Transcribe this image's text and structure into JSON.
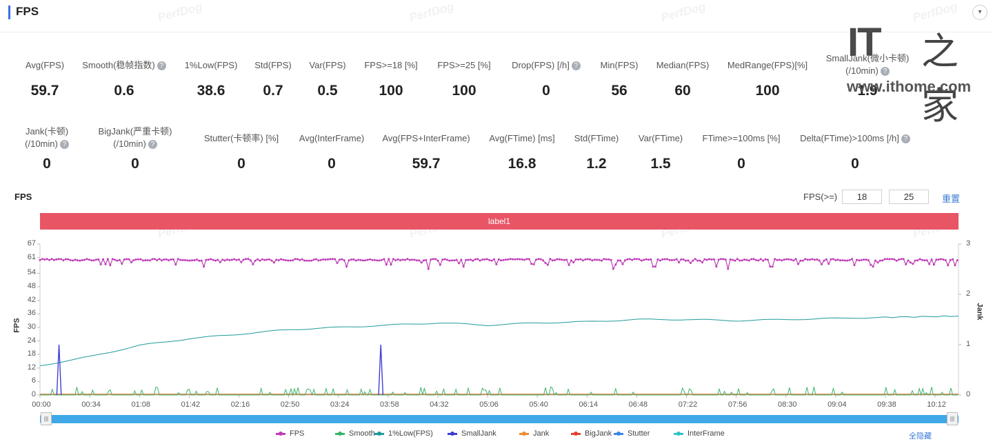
{
  "header": {
    "title": "FPS",
    "collapse_icon": "▾"
  },
  "watermark": "PerfDog",
  "metrics_row1": [
    {
      "label": "Avg(FPS)",
      "value": "59.7",
      "help": false
    },
    {
      "label": "Smooth(稳帧指数)",
      "value": "0.6",
      "help": true
    },
    {
      "label": "1%Low(FPS)",
      "value": "38.6",
      "help": false
    },
    {
      "label": "Std(FPS)",
      "value": "0.7",
      "help": false
    },
    {
      "label": "Var(FPS)",
      "value": "0.5",
      "help": false
    },
    {
      "label": "FPS>=18 [%]",
      "value": "100",
      "help": false
    },
    {
      "label": "FPS>=25 [%]",
      "value": "100",
      "help": false
    },
    {
      "label": "Drop(FPS) [/h]",
      "value": "0",
      "help": true
    },
    {
      "label": "Min(FPS)",
      "value": "56",
      "help": false
    },
    {
      "label": "Median(FPS)",
      "value": "60",
      "help": false
    },
    {
      "label": "MedRange(FPS)[%]",
      "value": "100",
      "help": false
    },
    {
      "label": "SmallJank(微小卡顿)",
      "label2": "(/10min)",
      "value": "1.9",
      "help": true
    }
  ],
  "metrics_row2": [
    {
      "label": "Jank(卡顿)",
      "label2": "(/10min)",
      "value": "0",
      "help": true
    },
    {
      "label": "BigJank(严重卡顿)",
      "label2": "(/10min)",
      "value": "0",
      "help": true
    },
    {
      "label": "Stutter(卡顿率) [%]",
      "value": "0",
      "help": false
    },
    {
      "label": "Avg(InterFrame)",
      "value": "0",
      "help": false
    },
    {
      "label": "Avg(FPS+InterFrame)",
      "value": "59.7",
      "help": false
    },
    {
      "label": "Avg(FTime) [ms]",
      "value": "16.8",
      "help": false
    },
    {
      "label": "Std(FTime)",
      "value": "1.2",
      "help": false
    },
    {
      "label": "Var(FTime)",
      "value": "1.5",
      "help": false
    },
    {
      "label": "FTime>=100ms [%]",
      "value": "0",
      "help": false
    },
    {
      "label": "Delta(FTime)>100ms [/h]",
      "value": "0",
      "help": true
    }
  ],
  "chart_panel": {
    "title": "FPS",
    "threshold_label": "FPS(>=)",
    "threshold_1": "18",
    "threshold_2": "25",
    "reset_label": "重置",
    "band_label": "label1",
    "hide_all_label": "全隐藏"
  },
  "logo": {
    "it": "IT",
    "home": "之家",
    "url": "www.ithome.com"
  },
  "chart_data": {
    "type": "line",
    "x_ticks": [
      "00:00",
      "00:34",
      "01:08",
      "01:42",
      "02:16",
      "02:50",
      "03:24",
      "03:58",
      "04:32",
      "05:06",
      "05:40",
      "06:14",
      "06:48",
      "07:22",
      "07:56",
      "08:30",
      "09:04",
      "09:38",
      "10:12"
    ],
    "x_tick_seconds": [
      0,
      34,
      68,
      102,
      136,
      170,
      204,
      238,
      272,
      306,
      340,
      374,
      408,
      442,
      476,
      510,
      544,
      578,
      612
    ],
    "x_range_seconds": [
      0,
      628
    ],
    "ylabel": "FPS",
    "y_ticks": [
      0,
      6,
      12,
      18,
      24,
      30,
      36,
      42,
      48,
      54,
      61,
      67
    ],
    "ylim": [
      0,
      67
    ],
    "y2label": "Jank",
    "y2_ticks": [
      0,
      1,
      2,
      3
    ],
    "y2lim": [
      0,
      3
    ],
    "legend_position": "bottom",
    "series": [
      {
        "name": "FPS",
        "color": "#c03db8",
        "axis": "left",
        "baseline": 60,
        "dips": [
          [
            45,
            58
          ],
          [
            112,
            57
          ],
          [
            146,
            58
          ],
          [
            210,
            57
          ],
          [
            266,
            56
          ],
          [
            290,
            57
          ],
          [
            312,
            58
          ],
          [
            338,
            58
          ],
          [
            392,
            56
          ],
          [
            420,
            57
          ],
          [
            462,
            57
          ],
          [
            470,
            56
          ],
          [
            500,
            57
          ],
          [
            535,
            58
          ],
          [
            570,
            57
          ],
          [
            592,
            58
          ]
        ]
      },
      {
        "name": "Smooth",
        "color": "#3cb36a",
        "axis": "left",
        "approx_range": [
          0,
          4
        ]
      },
      {
        "name": "1%Low(FPS)",
        "color": "#1e9a9a",
        "axis": "left",
        "points": [
          [
            0,
            13
          ],
          [
            34,
            17
          ],
          [
            68,
            22
          ],
          [
            102,
            25
          ],
          [
            136,
            27
          ],
          [
            170,
            29
          ],
          [
            204,
            30
          ],
          [
            238,
            31
          ],
          [
            272,
            32
          ],
          [
            306,
            31
          ],
          [
            340,
            32
          ],
          [
            374,
            32.5
          ],
          [
            408,
            33.5
          ],
          [
            442,
            33.5
          ],
          [
            476,
            33
          ],
          [
            510,
            33.5
          ],
          [
            544,
            34
          ],
          [
            578,
            34.5
          ],
          [
            628,
            35
          ]
        ]
      },
      {
        "name": "SmallJank",
        "color": "#3d3fd1",
        "axis": "right",
        "spikes": [
          [
            13,
            1
          ],
          [
            233,
            1
          ]
        ]
      },
      {
        "name": "Jank",
        "color": "#f08a2e",
        "axis": "right",
        "values": "0"
      },
      {
        "name": "BigJank",
        "color": "#e2402e",
        "axis": "right",
        "values": "0"
      },
      {
        "name": "Stutter",
        "color": "#3a86e8",
        "axis": "right",
        "values": "0"
      },
      {
        "name": "InterFrame",
        "color": "#2fc3c8",
        "axis": "left",
        "values": "0"
      }
    ]
  }
}
